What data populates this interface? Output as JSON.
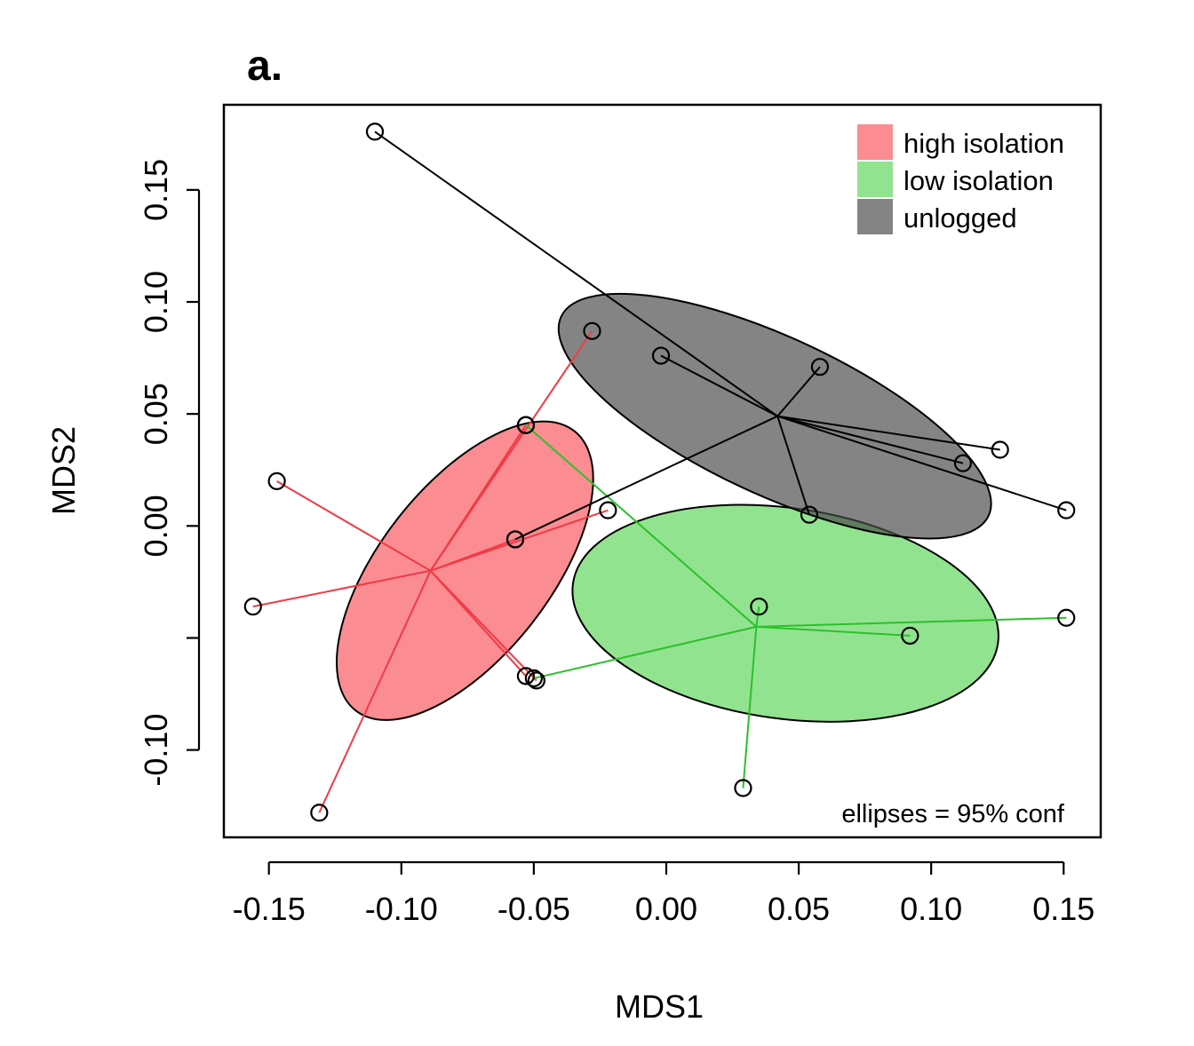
{
  "chart_data": {
    "type": "scatter",
    "title": "a.",
    "xlabel": "MDS1",
    "ylabel": "MDS2",
    "xlim": [
      -0.167,
      0.164
    ],
    "ylim": [
      -0.139,
      0.188
    ],
    "x_ticks": [
      -0.15,
      -0.1,
      -0.05,
      0.0,
      0.05,
      0.1,
      0.15
    ],
    "x_tick_labels": [
      "-0.15",
      "-0.10",
      "-0.05",
      "0.00",
      "0.05",
      "0.10",
      "0.15"
    ],
    "y_ticks": [
      -0.1,
      -0.05,
      0.0,
      0.05,
      0.1,
      0.15
    ],
    "y_tick_labels": [
      "-0.10",
      "",
      "0.00",
      "0.05",
      "0.10",
      "0.15"
    ],
    "grid": false,
    "legend_position": "top-right",
    "annotation": "ellipses = 95% conf",
    "series": [
      {
        "name": "high isolation",
        "color": "#f03b45",
        "fill_color": "#f7565f",
        "centroid": [
          -0.089,
          -0.02
        ],
        "ellipse": {
          "center": [
            -0.076,
            -0.02
          ],
          "semi_axes": [
            0.067,
            0.038
          ],
          "angle_deg": 52
        },
        "points": [
          [
            -0.028,
            0.087
          ],
          [
            -0.053,
            0.045
          ],
          [
            -0.147,
            0.02
          ],
          [
            -0.022,
            0.007
          ],
          [
            -0.057,
            -0.006
          ],
          [
            -0.156,
            -0.036
          ],
          [
            -0.053,
            -0.067
          ],
          [
            -0.049,
            -0.069
          ],
          [
            -0.131,
            -0.128
          ]
        ]
      },
      {
        "name": "low isolation",
        "color": "#2bc12b",
        "fill_color": "#5fd65a",
        "centroid": [
          0.034,
          -0.045
        ],
        "ellipse": {
          "center": [
            0.045,
            -0.039
          ],
          "semi_axes": [
            0.081,
            0.047
          ],
          "angle_deg": -8
        },
        "points": [
          [
            0.035,
            -0.036
          ],
          [
            0.092,
            -0.049
          ],
          [
            0.151,
            -0.041
          ],
          [
            0.029,
            -0.117
          ],
          [
            -0.05,
            -0.068
          ],
          [
            -0.053,
            0.045
          ]
        ]
      },
      {
        "name": "unlogged",
        "color": "#000000",
        "fill_color": "#4a4a4a",
        "centroid": [
          0.042,
          0.049
        ],
        "ellipse": {
          "center": [
            0.041,
            0.049
          ],
          "semi_axes": [
            0.089,
            0.035
          ],
          "angle_deg": -25
        },
        "points": [
          [
            -0.11,
            0.176
          ],
          [
            -0.002,
            0.076
          ],
          [
            0.058,
            0.071
          ],
          [
            0.126,
            0.034
          ],
          [
            0.112,
            0.028
          ],
          [
            0.151,
            0.007
          ],
          [
            0.054,
            0.005
          ],
          [
            -0.057,
            -0.006
          ]
        ]
      }
    ]
  }
}
